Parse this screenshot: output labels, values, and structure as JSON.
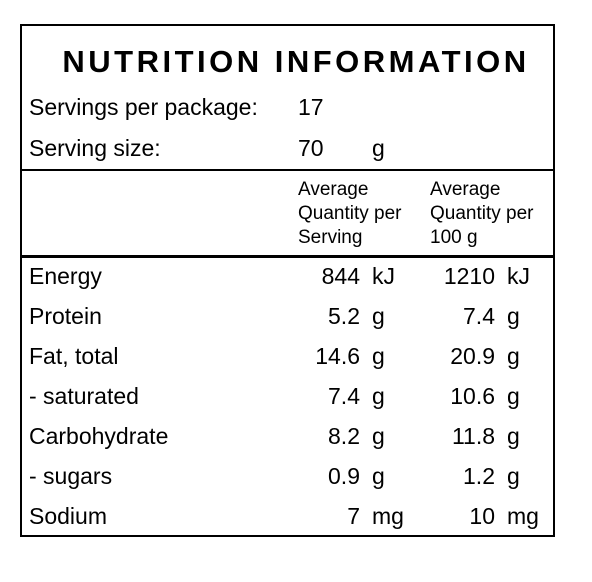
{
  "title": "NUTRITION INFORMATION",
  "servings": {
    "label": "Servings per package:",
    "value": "17"
  },
  "serving_size": {
    "label": "Serving size:",
    "value": "70",
    "unit": "g"
  },
  "headers": {
    "per_serving": [
      "Average",
      "Quantity per",
      "Serving"
    ],
    "per_100g": [
      "Average",
      "Quantity per",
      "100 g"
    ]
  },
  "rows": [
    {
      "name": "Energy",
      "serving": "844",
      "serving_unit": "kJ",
      "per100": "1210",
      "per100_unit": "kJ"
    },
    {
      "name": "Protein",
      "serving": "5.2",
      "serving_unit": "g",
      "per100": "7.4",
      "per100_unit": "g"
    },
    {
      "name": "Fat, total",
      "serving": "14.6",
      "serving_unit": "g",
      "per100": "20.9",
      "per100_unit": "g"
    },
    {
      "name": "- saturated",
      "serving": "7.4",
      "serving_unit": "g",
      "per100": "10.6",
      "per100_unit": "g"
    },
    {
      "name": "Carbohydrate",
      "serving": "8.2",
      "serving_unit": "g",
      "per100": "11.8",
      "per100_unit": "g"
    },
    {
      "name": "- sugars",
      "serving": "0.9",
      "serving_unit": "g",
      "per100": "1.2",
      "per100_unit": "g"
    },
    {
      "name": "Sodium",
      "serving": "7",
      "serving_unit": "mg",
      "per100": "10",
      "per100_unit": "mg"
    }
  ]
}
